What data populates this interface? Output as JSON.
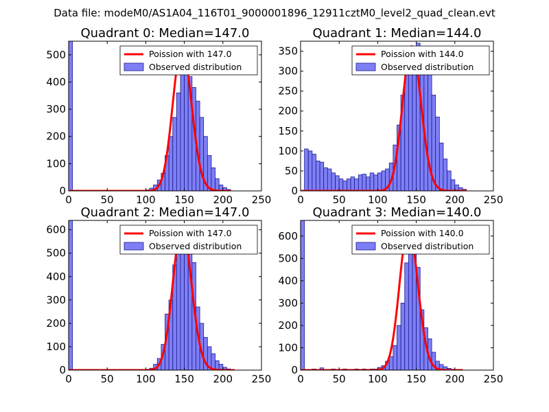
{
  "figure_title": "Data file: modeM0/AS1A04_116T01_9000001896_12911cztM0_level2_quad_clean.evt",
  "colors": {
    "bar_fill": "#7f7ff5",
    "bar_edge": "#1a1a8c",
    "poisson_line": "#ff0000",
    "axis": "#000000"
  },
  "chart_data": [
    {
      "type": "bar",
      "title": "Quadrant 0: Median=147.0",
      "xlim": [
        0,
        250
      ],
      "ylim": [
        0,
        550
      ],
      "xticks": [
        0,
        50,
        100,
        150,
        200,
        250
      ],
      "yticks": [
        0,
        100,
        200,
        300,
        400,
        500
      ],
      "legend": [
        "Poission with 147.0",
        "Observed distribution"
      ],
      "legend_position": "top-right",
      "median": 147.0,
      "poisson_peak": 530,
      "poisson_range": [
        0,
        210
      ],
      "bins": [
        {
          "x": 0,
          "v": 550
        },
        {
          "x": 95,
          "v": 2
        },
        {
          "x": 100,
          "v": 4
        },
        {
          "x": 105,
          "v": 10
        },
        {
          "x": 110,
          "v": 22
        },
        {
          "x": 115,
          "v": 40
        },
        {
          "x": 120,
          "v": 65
        },
        {
          "x": 125,
          "v": 130
        },
        {
          "x": 130,
          "v": 200
        },
        {
          "x": 135,
          "v": 270
        },
        {
          "x": 140,
          "v": 360
        },
        {
          "x": 145,
          "v": 430
        },
        {
          "x": 150,
          "v": 460
        },
        {
          "x": 155,
          "v": 420
        },
        {
          "x": 160,
          "v": 380
        },
        {
          "x": 165,
          "v": 330
        },
        {
          "x": 170,
          "v": 270
        },
        {
          "x": 175,
          "v": 200
        },
        {
          "x": 180,
          "v": 130
        },
        {
          "x": 185,
          "v": 85
        },
        {
          "x": 190,
          "v": 45
        },
        {
          "x": 195,
          "v": 22
        },
        {
          "x": 200,
          "v": 12
        },
        {
          "x": 205,
          "v": 5
        }
      ]
    },
    {
      "type": "bar",
      "title": "Quadrant 1: Median=144.0",
      "xlim": [
        0,
        250
      ],
      "ylim": [
        0,
        375
      ],
      "xticks": [
        0,
        50,
        100,
        150,
        200,
        250
      ],
      "yticks": [
        0,
        50,
        100,
        150,
        200,
        250,
        300,
        350
      ],
      "legend": [
        "Poission with 144.0",
        "Observed distribution"
      ],
      "legend_position": "top-right",
      "median": 144.0,
      "poisson_peak": 362,
      "poisson_range": [
        0,
        215
      ],
      "bins": [
        {
          "x": 5,
          "v": 105
        },
        {
          "x": 10,
          "v": 100
        },
        {
          "x": 15,
          "v": 92
        },
        {
          "x": 20,
          "v": 75
        },
        {
          "x": 25,
          "v": 72
        },
        {
          "x": 30,
          "v": 58
        },
        {
          "x": 35,
          "v": 55
        },
        {
          "x": 40,
          "v": 45
        },
        {
          "x": 45,
          "v": 38
        },
        {
          "x": 50,
          "v": 30
        },
        {
          "x": 55,
          "v": 25
        },
        {
          "x": 60,
          "v": 30
        },
        {
          "x": 65,
          "v": 35
        },
        {
          "x": 70,
          "v": 30
        },
        {
          "x": 75,
          "v": 40
        },
        {
          "x": 80,
          "v": 42
        },
        {
          "x": 85,
          "v": 35
        },
        {
          "x": 90,
          "v": 45
        },
        {
          "x": 95,
          "v": 40
        },
        {
          "x": 100,
          "v": 45
        },
        {
          "x": 105,
          "v": 50
        },
        {
          "x": 110,
          "v": 55
        },
        {
          "x": 115,
          "v": 70
        },
        {
          "x": 120,
          "v": 115
        },
        {
          "x": 125,
          "v": 165
        },
        {
          "x": 130,
          "v": 240
        },
        {
          "x": 135,
          "v": 300
        },
        {
          "x": 140,
          "v": 330
        },
        {
          "x": 145,
          "v": 350
        },
        {
          "x": 150,
          "v": 370
        },
        {
          "x": 155,
          "v": 340
        },
        {
          "x": 160,
          "v": 330
        },
        {
          "x": 165,
          "v": 300
        },
        {
          "x": 170,
          "v": 240
        },
        {
          "x": 175,
          "v": 185
        },
        {
          "x": 180,
          "v": 120
        },
        {
          "x": 185,
          "v": 80
        },
        {
          "x": 190,
          "v": 50
        },
        {
          "x": 195,
          "v": 28
        },
        {
          "x": 200,
          "v": 15
        },
        {
          "x": 205,
          "v": 8
        },
        {
          "x": 210,
          "v": 4
        }
      ]
    },
    {
      "type": "bar",
      "title": "Quadrant 2: Median=147.0",
      "xlim": [
        0,
        250
      ],
      "ylim": [
        0,
        640
      ],
      "xticks": [
        0,
        50,
        100,
        150,
        200,
        250
      ],
      "yticks": [
        0,
        100,
        200,
        300,
        400,
        500,
        600
      ],
      "legend": [
        "Poission with 147.0",
        "Observed distribution"
      ],
      "legend_position": "top-right",
      "median": 147.0,
      "poisson_peak": 612,
      "poisson_range": [
        0,
        215
      ],
      "bins": [
        {
          "x": 0,
          "v": 640
        },
        {
          "x": 100,
          "v": 3
        },
        {
          "x": 105,
          "v": 8
        },
        {
          "x": 110,
          "v": 25
        },
        {
          "x": 115,
          "v": 50
        },
        {
          "x": 120,
          "v": 110
        },
        {
          "x": 125,
          "v": 240
        },
        {
          "x": 130,
          "v": 300
        },
        {
          "x": 135,
          "v": 450
        },
        {
          "x": 140,
          "v": 600
        },
        {
          "x": 145,
          "v": 540
        },
        {
          "x": 150,
          "v": 580
        },
        {
          "x": 155,
          "v": 610
        },
        {
          "x": 160,
          "v": 460
        },
        {
          "x": 165,
          "v": 270
        },
        {
          "x": 170,
          "v": 200
        },
        {
          "x": 175,
          "v": 140
        },
        {
          "x": 180,
          "v": 100
        },
        {
          "x": 185,
          "v": 70
        },
        {
          "x": 190,
          "v": 40
        },
        {
          "x": 195,
          "v": 25
        },
        {
          "x": 200,
          "v": 12
        },
        {
          "x": 205,
          "v": 5
        },
        {
          "x": 210,
          "v": 2
        }
      ]
    },
    {
      "type": "bar",
      "title": "Quadrant 3: Median=140.0",
      "xlim": [
        0,
        250
      ],
      "ylim": [
        0,
        670
      ],
      "xticks": [
        0,
        50,
        100,
        150,
        200,
        250
      ],
      "yticks": [
        0,
        100,
        200,
        300,
        400,
        500,
        600
      ],
      "legend": [
        "Poission with 140.0",
        "Observed distribution"
      ],
      "legend_position": "top-right",
      "median": 140.0,
      "poisson_peak": 640,
      "poisson_range": [
        0,
        210
      ],
      "bins": [
        {
          "x": 0,
          "v": 670
        },
        {
          "x": 15,
          "v": 5
        },
        {
          "x": 25,
          "v": 10
        },
        {
          "x": 40,
          "v": 5
        },
        {
          "x": 55,
          "v": 5
        },
        {
          "x": 70,
          "v": 5
        },
        {
          "x": 80,
          "v": 5
        },
        {
          "x": 90,
          "v": 5
        },
        {
          "x": 95,
          "v": 5
        },
        {
          "x": 100,
          "v": 12
        },
        {
          "x": 105,
          "v": 20
        },
        {
          "x": 110,
          "v": 40
        },
        {
          "x": 115,
          "v": 60
        },
        {
          "x": 120,
          "v": 110
        },
        {
          "x": 125,
          "v": 200
        },
        {
          "x": 130,
          "v": 300
        },
        {
          "x": 135,
          "v": 480
        },
        {
          "x": 140,
          "v": 600
        },
        {
          "x": 145,
          "v": 540
        },
        {
          "x": 150,
          "v": 460
        },
        {
          "x": 155,
          "v": 270
        },
        {
          "x": 160,
          "v": 190
        },
        {
          "x": 165,
          "v": 140
        },
        {
          "x": 170,
          "v": 80
        },
        {
          "x": 175,
          "v": 40
        },
        {
          "x": 180,
          "v": 25
        },
        {
          "x": 185,
          "v": 15
        },
        {
          "x": 190,
          "v": 8
        },
        {
          "x": 195,
          "v": 4
        }
      ]
    }
  ]
}
